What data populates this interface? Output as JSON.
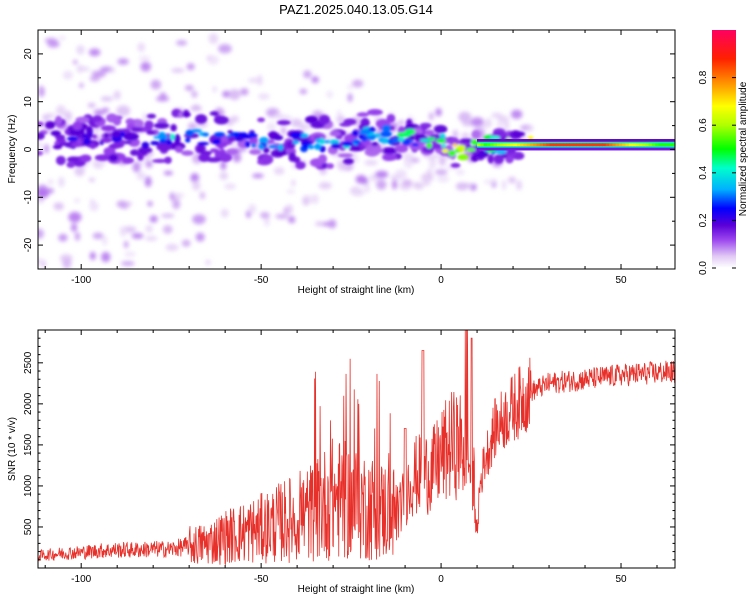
{
  "title": "PAZ1.2025.040.13.05.G14",
  "colors": {
    "snr_line": "#e8302a",
    "frame": "#000000",
    "background": "#ffffff"
  },
  "chart_data": [
    {
      "type": "heatmap",
      "title": "PAZ1.2025.040.13.05.G14",
      "xlabel": "Height of straight line (km)",
      "ylabel": "Frequency (Hz)",
      "xlim": [
        -112,
        65
      ],
      "ylim": [
        -25,
        25
      ],
      "x_ticks": [
        -100,
        -50,
        0,
        50
      ],
      "y_ticks": [
        -20,
        -10,
        0,
        10,
        20
      ],
      "colorbar": {
        "label": "Normalized spectral amplitude",
        "range": [
          0,
          1
        ],
        "ticks": [
          "0.0",
          "0.2",
          "0.4",
          "0.6",
          "0.8"
        ],
        "colormap": [
          "#ffffff",
          "#e0c8f5",
          "#9a44ee",
          "#5a00d8",
          "#0000ff",
          "#00b0ff",
          "#00ffcc",
          "#00ff00",
          "#b0ff00",
          "#ffff00",
          "#ff9a00",
          "#ff2000",
          "#ff0060"
        ]
      },
      "description_ridge": [
        {
          "x": -105,
          "freq": 1.5,
          "amp": 0.35
        },
        {
          "x": -95,
          "freq": 2,
          "amp": 0.3
        },
        {
          "x": -85,
          "freq": 2,
          "amp": 0.35
        },
        {
          "x": -72,
          "freq": 3,
          "amp": 0.55
        },
        {
          "x": -62,
          "freq": 2.5,
          "amp": 0.4
        },
        {
          "x": -52,
          "freq": 2,
          "amp": 0.4
        },
        {
          "x": -40,
          "freq": 1.5,
          "amp": 0.45
        },
        {
          "x": -30,
          "freq": 1.5,
          "amp": 0.5
        },
        {
          "x": -18,
          "freq": 3.5,
          "amp": 0.55
        },
        {
          "x": -8,
          "freq": 2.5,
          "amp": 0.6
        },
        {
          "x": 0,
          "freq": 1.5,
          "amp": 0.7
        },
        {
          "x": 5,
          "freq": -1,
          "amp": 0.85
        },
        {
          "x": 12,
          "freq": 1,
          "amp": 0.6
        },
        {
          "x": 20,
          "freq": 1,
          "amp": 0.75
        },
        {
          "x": 30,
          "freq": 1,
          "amp": 0.9
        },
        {
          "x": 45,
          "freq": 1,
          "amp": 0.9
        },
        {
          "x": 60,
          "freq": 1,
          "amp": 0.6
        }
      ]
    },
    {
      "type": "line",
      "xlabel": "Height of straight line (km)",
      "ylabel": "SNR (10 * v/v)",
      "xlim": [
        -112,
        65
      ],
      "ylim": [
        0,
        2900
      ],
      "x_ticks": [
        -100,
        -50,
        0,
        50
      ],
      "y_ticks": [
        500,
        1000,
        1500,
        2000,
        2500
      ],
      "series": [
        {
          "x": [
            -112,
            -105,
            -100,
            -95,
            -90,
            -85,
            -80,
            -75,
            -70,
            -65,
            -60,
            -55,
            -50,
            -45,
            -40,
            -35,
            -30,
            -25,
            -20,
            -17,
            -15,
            -12,
            -10,
            -8,
            -5,
            -2,
            0,
            3,
            5,
            7,
            9,
            10,
            12,
            15,
            20,
            25,
            30,
            40,
            50,
            60,
            65
          ],
          "y": [
            150,
            180,
            190,
            210,
            220,
            220,
            230,
            230,
            270,
            300,
            380,
            430,
            480,
            550,
            620,
            700,
            850,
            800,
            750,
            700,
            700,
            650,
            900,
            1100,
            1150,
            1200,
            1350,
            1500,
            1500,
            1400,
            1100,
            800,
            1300,
            1700,
            1950,
            2150,
            2250,
            2300,
            2350,
            2380,
            2390
          ]
        }
      ]
    }
  ]
}
